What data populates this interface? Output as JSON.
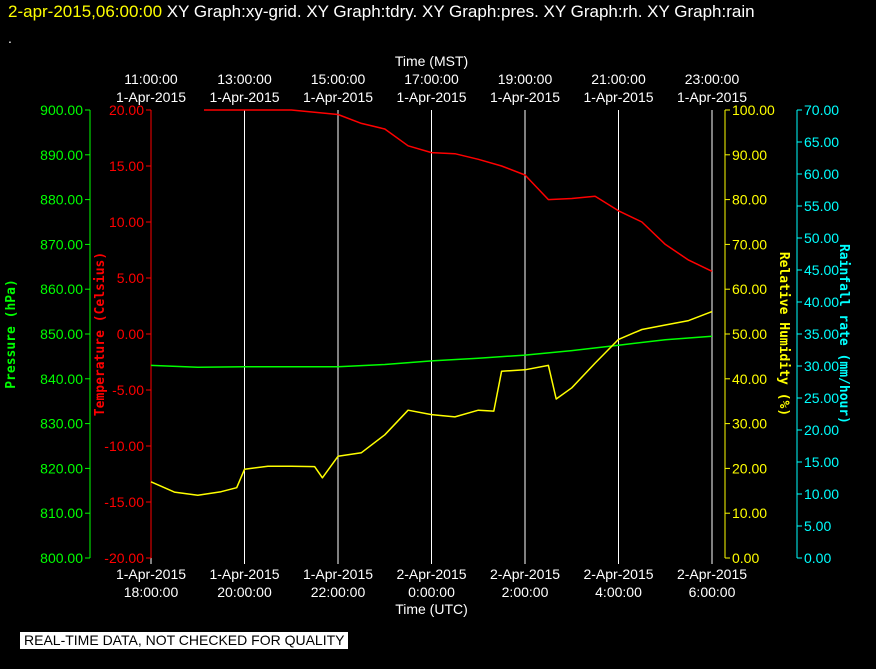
{
  "header": {
    "timestamp": "2-apr-2015,06:00:00",
    "graphs": [
      "XY Graph:xy-grid.",
      "XY Graph:tdry.",
      "XY Graph:pres.",
      "XY Graph:rh.",
      "XY Graph:rain"
    ],
    "dot": "."
  },
  "footer": {
    "quality_notice": "REAL-TIME DATA, NOT CHECKED FOR QUALITY"
  },
  "colors": {
    "background": "#000000",
    "grid": "#ffffff",
    "pressure": "#00ff00",
    "temperature": "#ff0000",
    "humidity": "#ffff00",
    "rainfall": "#00ffff",
    "text": "#ffffff"
  },
  "chart_data": {
    "type": "line",
    "grid": true,
    "top_axis": {
      "label": "Time (MST)",
      "ticks": [
        {
          "time": "11:00:00",
          "date": "1-Apr-2015"
        },
        {
          "time": "13:00:00",
          "date": "1-Apr-2015"
        },
        {
          "time": "15:00:00",
          "date": "1-Apr-2015"
        },
        {
          "time": "17:00:00",
          "date": "1-Apr-2015"
        },
        {
          "time": "19:00:00",
          "date": "1-Apr-2015"
        },
        {
          "time": "21:00:00",
          "date": "1-Apr-2015"
        },
        {
          "time": "23:00:00",
          "date": "1-Apr-2015"
        }
      ]
    },
    "bottom_axis": {
      "label": "Time (UTC)",
      "range": [
        "2015-04-01 18:00",
        "2015-04-02 06:00"
      ],
      "ticks": [
        {
          "date": "1-Apr-2015",
          "time": "18:00:00"
        },
        {
          "date": "1-Apr-2015",
          "time": "20:00:00"
        },
        {
          "date": "1-Apr-2015",
          "time": "22:00:00"
        },
        {
          "date": "2-Apr-2015",
          "time": "0:00:00"
        },
        {
          "date": "2-Apr-2015",
          "time": "2:00:00"
        },
        {
          "date": "2-Apr-2015",
          "time": "4:00:00"
        },
        {
          "date": "2-Apr-2015",
          "time": "6:00:00"
        }
      ]
    },
    "y_axes": [
      {
        "id": "pressure",
        "label": "Pressure (hPa)",
        "range": [
          800,
          900
        ],
        "ticks": [
          "900.00",
          "890.00",
          "880.00",
          "870.00",
          "860.00",
          "850.00",
          "840.00",
          "830.00",
          "820.00",
          "810.00",
          "800.00"
        ]
      },
      {
        "id": "temperature",
        "label": "Temperature (Celsius)",
        "range": [
          -20,
          20
        ],
        "ticks": [
          "20.00",
          "15.00",
          "10.00",
          "5.00",
          "0.00",
          "-5.00",
          "-10.00",
          "-15.00",
          "-20.00"
        ]
      },
      {
        "id": "humidity",
        "label": "Relative Humidity (%)",
        "range": [
          0,
          100
        ],
        "ticks": [
          "100.00",
          "90.00",
          "80.00",
          "70.00",
          "60.00",
          "50.00",
          "40.00",
          "30.00",
          "20.00",
          "10.00",
          "0.00"
        ]
      },
      {
        "id": "rainfall",
        "label": "Rainfall rate (mm/hour)",
        "range": [
          0,
          70
        ],
        "ticks": [
          "70.00",
          "65.00",
          "60.00",
          "55.00",
          "50.00",
          "45.00",
          "40.00",
          "35.00",
          "30.00",
          "25.00",
          "20.00",
          "15.00",
          "10.00",
          "5.00",
          "0.00"
        ]
      }
    ],
    "series": [
      {
        "id": "temperature",
        "x": [
          "2015-04-01 19:08",
          "2015-04-01 19:30",
          "2015-04-01 20:00",
          "2015-04-01 20:30",
          "2015-04-01 21:00",
          "2015-04-01 21:30",
          "2015-04-01 22:00",
          "2015-04-01 22:30",
          "2015-04-01 23:00",
          "2015-04-01 23:30",
          "2015-04-02 00:00",
          "2015-04-02 00:30",
          "2015-04-02 01:00",
          "2015-04-02 01:30",
          "2015-04-02 02:00",
          "2015-04-02 02:30",
          "2015-04-02 03:00",
          "2015-04-02 03:30",
          "2015-04-02 04:00",
          "2015-04-02 04:30",
          "2015-04-02 05:00",
          "2015-04-02 05:30",
          "2015-04-02 06:00"
        ],
        "values": [
          20,
          20,
          20,
          20,
          20,
          19.8,
          19.6,
          18.8,
          18.3,
          16.8,
          16.2,
          16.1,
          15.6,
          15.0,
          14.2,
          12.0,
          12.1,
          12.3,
          11.0,
          10.0,
          8.0,
          6.6,
          5.6
        ]
      },
      {
        "id": "pressure",
        "x": [
          "2015-04-01 18:00",
          "2015-04-01 19:00",
          "2015-04-01 20:00",
          "2015-04-01 21:00",
          "2015-04-01 22:00",
          "2015-04-01 23:00",
          "2015-04-02 00:00",
          "2015-04-02 01:00",
          "2015-04-02 02:00",
          "2015-04-02 03:00",
          "2015-04-02 04:00",
          "2015-04-02 05:00",
          "2015-04-02 06:00"
        ],
        "values": [
          843.0,
          842.6,
          842.7,
          842.7,
          842.7,
          843.2,
          844.0,
          844.6,
          845.3,
          846.3,
          847.5,
          848.7,
          849.5
        ]
      },
      {
        "id": "humidity",
        "x": [
          "2015-04-01 18:00",
          "2015-04-01 18:30",
          "2015-04-01 19:00",
          "2015-04-01 19:30",
          "2015-04-01 19:50",
          "2015-04-01 20:00",
          "2015-04-01 20:30",
          "2015-04-01 21:00",
          "2015-04-01 21:30",
          "2015-04-01 21:40",
          "2015-04-01 22:00",
          "2015-04-01 22:30",
          "2015-04-01 23:00",
          "2015-04-01 23:30",
          "2015-04-02 00:00",
          "2015-04-02 00:30",
          "2015-04-02 01:00",
          "2015-04-02 01:20",
          "2015-04-02 01:30",
          "2015-04-02 02:00",
          "2015-04-02 02:30",
          "2015-04-02 02:40",
          "2015-04-02 03:00",
          "2015-04-02 03:30",
          "2015-04-02 04:00",
          "2015-04-02 04:30",
          "2015-04-02 05:00",
          "2015-04-02 05:30",
          "2015-04-02 06:00"
        ],
        "values": [
          17.0,
          14.7,
          14.0,
          14.8,
          15.7,
          19.8,
          20.5,
          20.5,
          20.4,
          17.9,
          22.7,
          23.5,
          27.5,
          33.0,
          32.0,
          31.5,
          33.0,
          32.8,
          41.7,
          42.0,
          43.0,
          35.5,
          38.0,
          43.5,
          48.8,
          51.0,
          52.0,
          53.0,
          55.0
        ]
      },
      {
        "id": "rainfall",
        "x": [],
        "values": []
      }
    ]
  }
}
